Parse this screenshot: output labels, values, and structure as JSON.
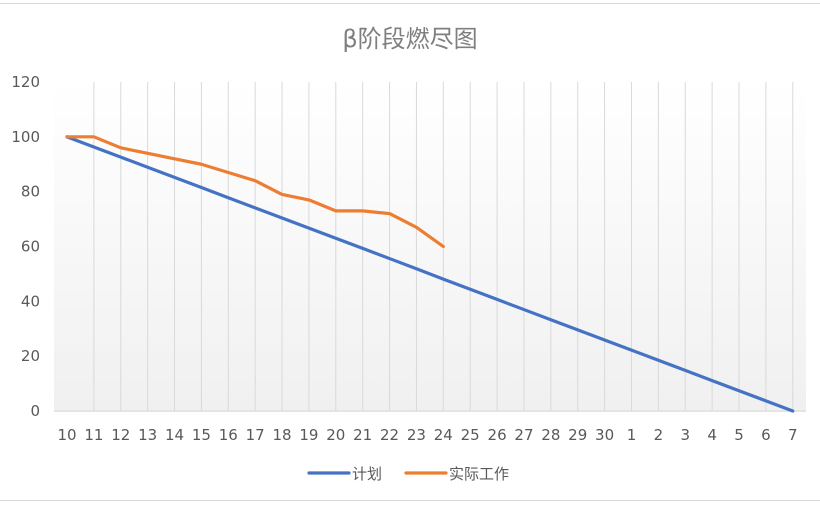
{
  "chart_data": {
    "type": "line",
    "title": "β阶段燃尽图",
    "xlabel": "",
    "ylabel": "",
    "categories": [
      "10",
      "11",
      "12",
      "13",
      "14",
      "15",
      "16",
      "17",
      "18",
      "19",
      "20",
      "21",
      "22",
      "23",
      "24",
      "25",
      "26",
      "27",
      "28",
      "29",
      "30",
      "1",
      "2",
      "3",
      "4",
      "5",
      "6",
      "7"
    ],
    "ylim": [
      0,
      120
    ],
    "yticks": [
      "0",
      "20",
      "40",
      "60",
      "80",
      "100",
      "120"
    ],
    "grid": "vertical lines per category",
    "legend_position": "bottom",
    "series": [
      {
        "name": "计划",
        "color": "#4472c4",
        "values": [
          100,
          96.3,
          92.6,
          88.9,
          85.2,
          81.5,
          77.8,
          74.1,
          70.4,
          66.7,
          63.0,
          59.3,
          55.6,
          51.9,
          48.1,
          44.4,
          40.7,
          37.0,
          33.3,
          29.6,
          25.9,
          22.2,
          18.5,
          14.8,
          11.1,
          7.4,
          3.7,
          0
        ]
      },
      {
        "name": "实际工作",
        "color": "#ed7d31",
        "values": [
          100,
          100,
          96,
          94,
          92,
          90,
          87,
          84,
          79,
          77,
          73,
          73,
          72,
          67,
          60,
          null,
          null,
          null,
          null,
          null,
          null,
          null,
          null,
          null,
          null,
          null,
          null,
          null
        ]
      }
    ]
  }
}
